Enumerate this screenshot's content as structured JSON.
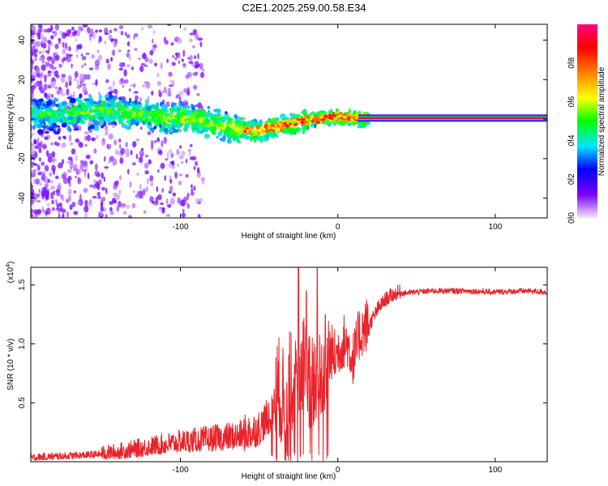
{
  "title": "C2E1.2025.259.00.58.E34",
  "chart_data": [
    {
      "type": "heatmap",
      "xlabel": "Height of straight line (km)",
      "ylabel": "Frequency (Hz)",
      "xlim": [
        -195,
        133
      ],
      "ylim": [
        -50,
        48
      ],
      "xticks": [
        -100,
        0,
        100
      ],
      "yticks": [
        -40,
        -20,
        0,
        20,
        40
      ],
      "colorbar": {
        "label": "Normalized spectral amplitude",
        "range": [
          0,
          1
        ],
        "ticks": [
          "0.0",
          "0.2",
          "0.4",
          "0.6",
          "0.8"
        ],
        "tick_values": [
          0.0,
          0.2,
          0.4,
          0.6,
          0.8
        ],
        "colors": [
          "#f4e6ff",
          "#7a00ff",
          "#0000ff",
          "#00e5ff",
          "#00ff00",
          "#ffff00",
          "#ff8000",
          "#ff0000",
          "#ff0080"
        ]
      },
      "ridge": {
        "description_points_x": [
          -190,
          -170,
          -150,
          -130,
          -110,
          -90,
          -70,
          -55,
          -45,
          -35,
          -25,
          -15,
          -5,
          5,
          15,
          133
        ],
        "description_points_y": [
          2,
          3,
          4,
          3,
          1,
          0,
          -4,
          -6,
          -5,
          -3,
          -2,
          0,
          1,
          1,
          0,
          0
        ],
        "steady_line_start_x": 13,
        "steady_line_value": 0.5
      }
    },
    {
      "type": "line",
      "xlabel": "Height of straight line (km)",
      "ylabel": "SNR (10 * v/v)",
      "yunit": "(x10",
      "yunit_exp": "4",
      "yunit_close": ")",
      "xlim": [
        -195,
        133
      ],
      "ylim": [
        0,
        1.65
      ],
      "xticks": [
        -100,
        0,
        100
      ],
      "yticks": [
        0.5,
        1.0,
        1.5
      ],
      "ytick_labels": [
        "0.5",
        "1.0",
        "1.5"
      ],
      "color": "#e8232a",
      "series_x": [
        -195,
        -180,
        -160,
        -140,
        -120,
        -100,
        -80,
        -60,
        -50,
        -42,
        -38,
        -34,
        -30,
        -26,
        -22,
        -18,
        -14,
        -10,
        -6,
        -2,
        2,
        6,
        10,
        14,
        18,
        22,
        26,
        30,
        34,
        40,
        50,
        60,
        80,
        100,
        120,
        133
      ],
      "series_y": [
        0.03,
        0.04,
        0.05,
        0.07,
        0.11,
        0.15,
        0.17,
        0.2,
        0.25,
        0.38,
        0.55,
        0.4,
        0.6,
        0.5,
        0.8,
        0.55,
        0.6,
        0.65,
        0.9,
        0.85,
        0.95,
        0.98,
        0.82,
        1.05,
        1.1,
        1.2,
        1.3,
        1.36,
        1.4,
        1.43,
        1.44,
        1.45,
        1.45,
        1.44,
        1.45,
        1.44
      ],
      "spikes": [
        {
          "x": -25,
          "y": 1.65
        },
        {
          "x": -13,
          "y": 1.65
        },
        {
          "x": -20,
          "y": 1.45
        },
        {
          "x": -8,
          "y": 1.25
        }
      ]
    }
  ]
}
